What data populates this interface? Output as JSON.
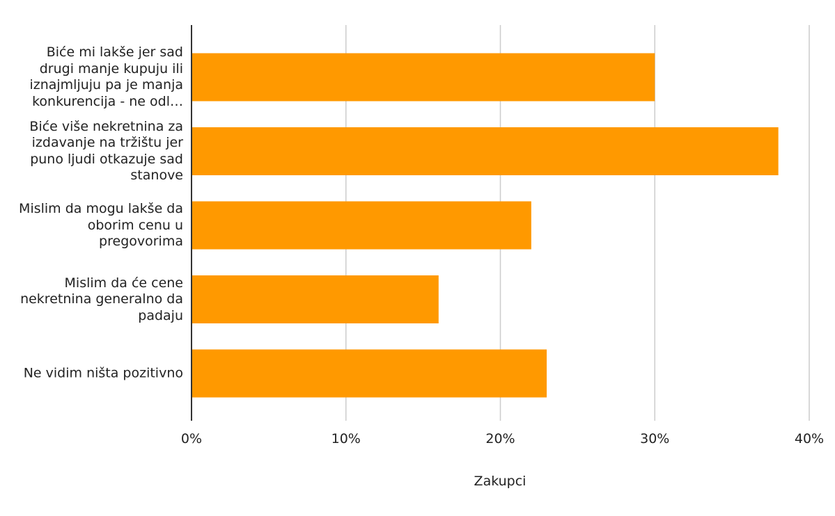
{
  "chart_data": {
    "type": "bar",
    "orientation": "horizontal",
    "categories": [
      "Biće mi lakše jer sad drugi manje kupuju ili iznajmljuju pa je manja konkurencija - ne odl…",
      "Biće više nekretnina za izdavanje na tržištu jer puno ljudi otkazuje sad stanove",
      "Mislim da mogu lakše da oborim cenu u pregovorima",
      "Mislim da će cene nekretnina generalno da padaju",
      "Ne vidim ništa pozitivno"
    ],
    "values": [
      0.3,
      0.38,
      0.22,
      0.16,
      0.23
    ],
    "xlim": [
      0,
      0.4
    ],
    "ticks": [
      0,
      0.1,
      0.2,
      0.3,
      0.4
    ],
    "tick_labels": [
      "0%",
      "10%",
      "20%",
      "30%",
      "40%"
    ],
    "xlabel": "Zakupci",
    "ylabel": "",
    "title": "",
    "grid": true,
    "legend": "none",
    "bar_color": "#FF9900",
    "grid_color": "#CCCCCC",
    "axis_color": "#333333",
    "label_color": "#222222"
  }
}
